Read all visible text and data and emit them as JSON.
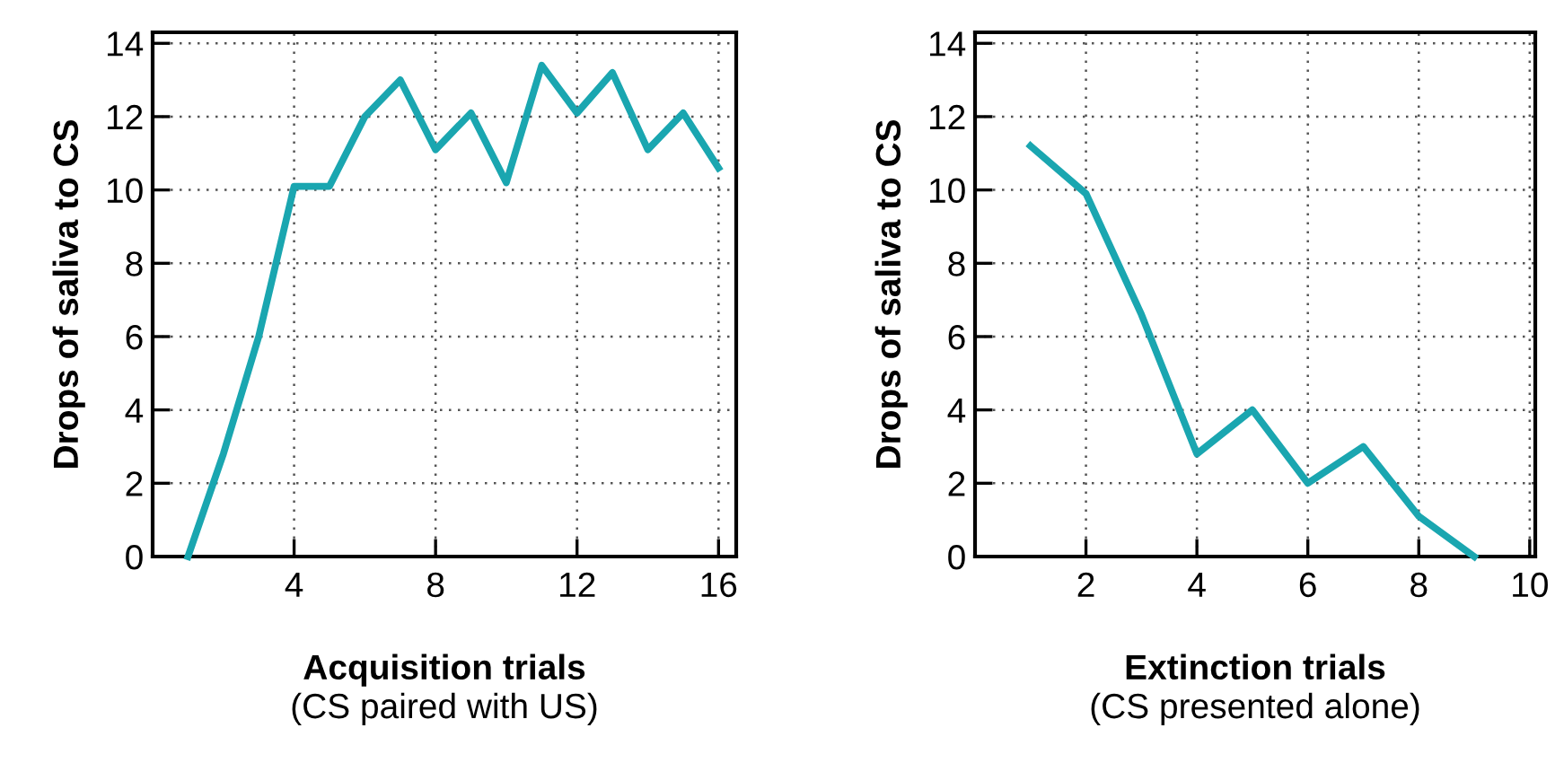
{
  "chart_data": [
    {
      "type": "line",
      "xlabel": "Acquisition trials",
      "annotations": [
        "(CS paired with US)"
      ],
      "ylabel": "Drops of saliva to CS",
      "x": [
        1,
        2,
        3,
        4,
        5,
        6,
        7,
        8,
        9,
        10,
        11,
        12,
        13,
        14,
        15,
        16
      ],
      "series": [
        {
          "color": "#1aa6b0",
          "values": [
            0,
            2.8,
            6,
            10.1,
            10.1,
            12,
            13,
            11.1,
            12.1,
            10.2,
            13.4,
            12.1,
            13.2,
            11.1,
            12.1,
            10.6
          ]
        }
      ],
      "xlim": [
        0,
        16.5
      ],
      "xticks": [
        4,
        8,
        12,
        16
      ],
      "ylim": [
        0,
        14.3
      ],
      "yticks": [
        0,
        2,
        4,
        6,
        8,
        10,
        12,
        14
      ],
      "grid": true,
      "marker": "none",
      "line_style": "solid"
    },
    {
      "type": "line",
      "xlabel": "Extinction trials",
      "annotations": [
        "(CS presented alone)"
      ],
      "ylabel": "Drops of saliva to CS",
      "x": [
        1,
        2,
        3,
        4,
        5,
        6,
        7,
        8,
        9
      ],
      "series": [
        {
          "color": "#1aa6b0",
          "values": [
            11.2,
            9.9,
            6.6,
            2.8,
            4,
            2,
            3,
            1.1,
            0
          ]
        }
      ],
      "xlim": [
        0,
        10.1
      ],
      "xticks": [
        2,
        4,
        6,
        8,
        10
      ],
      "ylim": [
        0,
        14.3
      ],
      "yticks": [
        0,
        2,
        4,
        6,
        8,
        10,
        12,
        14
      ],
      "grid": true,
      "marker": "none",
      "line_style": "solid"
    }
  ]
}
